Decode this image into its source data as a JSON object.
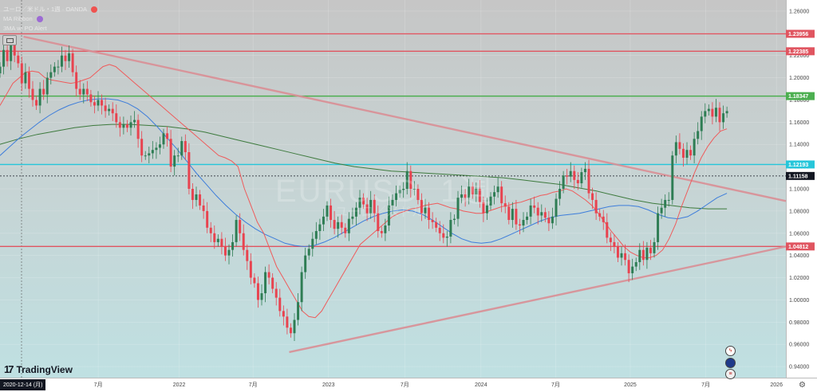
{
  "header": {
    "title": "ユーロ／米ドル・1週 · OANDA",
    "indicator_1": "MA Ribbon",
    "indicator_2": "3MA w/ PO Alert"
  },
  "watermark": {
    "symbol": "EURUSD, 1週",
    "subtitle": "ユーロ／米ドル"
  },
  "logo": "TradingView",
  "date_badge": "2020-12-14 (月)",
  "colors": {
    "up": "#2e7d54",
    "down": "#e8434f",
    "ma_fast": "#ef5b5b",
    "ma_mid": "#3d7ddb",
    "ma_slow": "#3d7a3d",
    "trendline": "#d98e95",
    "resistance": "#e05560",
    "support_green": "#4caf50",
    "cyan": "#26c6da"
  },
  "chart_data": {
    "type": "candlestick",
    "symbol": "EURUSD",
    "timeframe": "1W",
    "ylim": [
      0.93,
      1.27
    ],
    "yticks": [
      0.94,
      0.96,
      0.98,
      1.0,
      1.02,
      1.04,
      1.06,
      1.08,
      1.1,
      1.12,
      1.14,
      1.16,
      1.18,
      1.2,
      1.22,
      1.24,
      1.26
    ],
    "ytick_labels": [
      "0.94000",
      "0.96000",
      "0.98000",
      "1.00000",
      "1.02000",
      "1.04000",
      "1.06000",
      "1.08000",
      "1.10000",
      "1.12000",
      "1.14000",
      "1.16000",
      "1.18000",
      "1.20000",
      "1.22000",
      "1.24000",
      "1.26000"
    ],
    "xticks": [
      {
        "label": "7月",
        "x": 0.125
      },
      {
        "label": "2022",
        "x": 0.228
      },
      {
        "label": "7月",
        "x": 0.322
      },
      {
        "label": "2023",
        "x": 0.418
      },
      {
        "label": "7月",
        "x": 0.515
      },
      {
        "label": "2024",
        "x": 0.612
      },
      {
        "label": "7月",
        "x": 0.707
      },
      {
        "label": "2025",
        "x": 0.802
      },
      {
        "label": "7月",
        "x": 0.898
      },
      {
        "label": "2026",
        "x": 0.988
      }
    ],
    "levels": [
      {
        "value": 1.23956,
        "label": "1.23956",
        "color": "#e05560"
      },
      {
        "value": 1.22385,
        "label": "1.22385",
        "color": "#e05560"
      },
      {
        "value": 1.18347,
        "label": "1.18347",
        "color": "#4caf50"
      },
      {
        "value": 1.12193,
        "label": "1.12193",
        "color": "#26c6da"
      },
      {
        "value": 1.11158,
        "label": "1.11158",
        "color": "#131722"
      },
      {
        "value": 1.04812,
        "label": "1.04812",
        "color": "#e05560"
      }
    ],
    "trendlines": [
      {
        "from": [
          0.03,
          1.237
        ],
        "to": [
          1.0,
          1.089
        ]
      },
      {
        "from": [
          0.368,
          0.953
        ],
        "to": [
          1.0,
          1.048
        ]
      }
    ],
    "closes": [
      1.21,
      1.225,
      1.215,
      1.23,
      1.22,
      1.213,
      1.195,
      1.205,
      1.19,
      1.18,
      1.175,
      1.19,
      1.185,
      1.2,
      1.205,
      1.21,
      1.21,
      1.22,
      1.215,
      1.222,
      1.205,
      1.19,
      1.185,
      1.19,
      1.185,
      1.178,
      1.175,
      1.18,
      1.175,
      1.17,
      1.172,
      1.168,
      1.16,
      1.155,
      1.158,
      1.155,
      1.16,
      1.162,
      1.145,
      1.13,
      1.13,
      1.132,
      1.135,
      1.137,
      1.14,
      1.15,
      1.145,
      1.12,
      1.13,
      1.13,
      1.143,
      1.133,
      1.1,
      1.09,
      1.095,
      1.085,
      1.08,
      1.065,
      1.06,
      1.052,
      1.055,
      1.048,
      1.04,
      1.045,
      1.052,
      1.072,
      1.06,
      1.045,
      1.035,
      1.02,
      1.015,
      1.0,
      1.006,
      1.025,
      1.02,
      1.01,
      1.002,
      0.99,
      0.985,
      0.975,
      0.97,
      0.982,
      0.998,
      1.025,
      1.04,
      1.046,
      1.055,
      1.062,
      1.068,
      1.075,
      1.085,
      1.072,
      1.064,
      1.07,
      1.065,
      1.06,
      1.073,
      1.075,
      1.083,
      1.092,
      1.086,
      1.078,
      1.09,
      1.078,
      1.062,
      1.06,
      1.067,
      1.085,
      1.09,
      1.096,
      1.099,
      1.1,
      1.116,
      1.1,
      1.1,
      1.09,
      1.078,
      1.083,
      1.072,
      1.07,
      1.065,
      1.06,
      1.056,
      1.057,
      1.072,
      1.073,
      1.092,
      1.095,
      1.092,
      1.102,
      1.095,
      1.1,
      1.088,
      1.078,
      1.085,
      1.093,
      1.097,
      1.102,
      1.087,
      1.084,
      1.072,
      1.082,
      1.068,
      1.067,
      1.072,
      1.075,
      1.085,
      1.083,
      1.076,
      1.079,
      1.074,
      1.069,
      1.075,
      1.091,
      1.1,
      1.112,
      1.111,
      1.116,
      1.108,
      1.105,
      1.115,
      1.118,
      1.096,
      1.09,
      1.078,
      1.075,
      1.07,
      1.056,
      1.052,
      1.048,
      1.038,
      1.042,
      1.036,
      1.024,
      1.03,
      1.034,
      1.045,
      1.036,
      1.047,
      1.042,
      1.052,
      1.078,
      1.083,
      1.09,
      1.09,
      1.13,
      1.142,
      1.136,
      1.128,
      1.135,
      1.13,
      1.145,
      1.152,
      1.165,
      1.17,
      1.172,
      1.165,
      1.173,
      1.16,
      1.168,
      1.17
    ],
    "ma_fast": [
      1.175,
      1.185,
      1.195,
      1.2,
      1.205,
      1.206,
      1.205,
      1.2,
      1.198,
      1.197,
      1.196,
      1.195,
      1.196,
      1.198,
      1.2,
      1.205,
      1.21,
      1.212,
      1.21,
      1.205,
      1.2,
      1.195,
      1.19,
      1.185,
      1.18,
      1.175,
      1.17,
      1.165,
      1.16,
      1.155,
      1.15,
      1.145,
      1.14,
      1.135,
      1.13,
      1.128,
      1.125,
      1.12,
      1.1,
      1.085,
      1.07,
      1.06,
      1.045,
      1.03,
      1.02,
      1.01,
      1.0,
      0.99,
      0.985,
      0.984,
      0.99,
      1.0,
      1.01,
      1.02,
      1.03,
      1.04,
      1.05,
      1.055,
      1.06,
      1.065,
      1.07,
      1.075,
      1.078,
      1.08,
      1.082,
      1.083,
      1.085,
      1.086,
      1.087,
      1.085,
      1.083,
      1.082,
      1.08,
      1.079,
      1.078,
      1.078,
      1.08,
      1.082,
      1.084,
      1.085,
      1.087,
      1.088,
      1.09,
      1.092,
      1.094,
      1.095,
      1.097,
      1.098,
      1.1,
      1.098,
      1.094,
      1.09,
      1.085,
      1.078,
      1.07,
      1.062,
      1.055,
      1.048,
      1.043,
      1.04,
      1.038,
      1.038,
      1.04,
      1.045,
      1.055,
      1.068,
      1.085,
      1.1,
      1.115,
      1.128,
      1.138,
      1.146,
      1.152,
      1.154
    ],
    "ma_mid": [
      1.13,
      1.138,
      1.146,
      1.153,
      1.16,
      1.166,
      1.171,
      1.175,
      1.178,
      1.18,
      1.181,
      1.181,
      1.18,
      1.177,
      1.172,
      1.165,
      1.156,
      1.146,
      1.136,
      1.125,
      1.114,
      1.104,
      1.094,
      1.085,
      1.077,
      1.07,
      1.064,
      1.059,
      1.055,
      1.051,
      1.049,
      1.048,
      1.049,
      1.052,
      1.056,
      1.061,
      1.066,
      1.071,
      1.075,
      1.078,
      1.08,
      1.081,
      1.08,
      1.077,
      1.072,
      1.066,
      1.06,
      1.055,
      1.052,
      1.051,
      1.052,
      1.055,
      1.059,
      1.063,
      1.067,
      1.071,
      1.074,
      1.076,
      1.077,
      1.078,
      1.08,
      1.082,
      1.084,
      1.085,
      1.085,
      1.084,
      1.081,
      1.077,
      1.074,
      1.073,
      1.075,
      1.08,
      1.086,
      1.092,
      1.096
    ],
    "ma_slow": [
      1.14,
      1.145,
      1.149,
      1.152,
      1.155,
      1.157,
      1.158,
      1.158,
      1.157,
      1.156,
      1.154,
      1.151,
      1.147,
      1.143,
      1.139,
      1.135,
      1.131,
      1.127,
      1.123,
      1.12,
      1.118,
      1.116,
      1.115,
      1.114,
      1.113,
      1.112,
      1.111,
      1.11,
      1.108,
      1.106,
      1.104,
      1.101,
      1.098,
      1.094,
      1.09,
      1.087,
      1.085,
      1.083,
      1.082,
      1.082
    ],
    "ma_slow_span": [
      0.0,
      0.925
    ],
    "ma_mid_span": [
      0.0,
      0.925
    ],
    "ma_fast_span": [
      0.0,
      0.925
    ],
    "candles_span": [
      0.0,
      0.925
    ]
  }
}
